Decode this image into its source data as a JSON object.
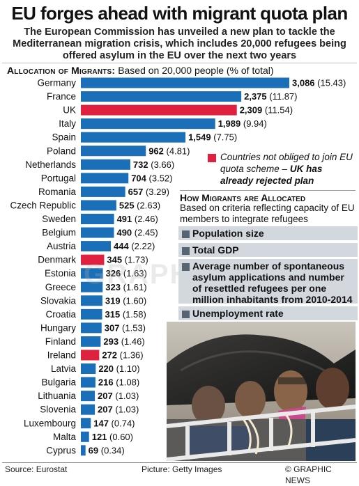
{
  "header": {
    "title": "EU forges ahead with migrant quota plan",
    "subtitle": "The European Commission has unveiled a new plan to tackle the Mediterranean migration crisis, which includes 20,000 refugees being offered asylum in the EU over the next two years"
  },
  "allocation_heading": {
    "bold": "Allocation of Migrants:",
    "rest": "Based on 20,000 people (% of total)"
  },
  "colors": {
    "blue": "#1a6fb8",
    "red": "#e0203f",
    "criteria_bg": "#d3d8df",
    "criteria_square": "#566571"
  },
  "chart_data": {
    "type": "bar",
    "orientation": "horizontal",
    "title": "Allocation of Migrants",
    "subtitle": "Based on 20,000 people (% of total)",
    "categories": [
      "Germany",
      "France",
      "UK",
      "Italy",
      "Spain",
      "Poland",
      "Netherlands",
      "Portugal",
      "Romania",
      "Czech Republic",
      "Sweden",
      "Belgium",
      "Austria",
      "Denmark",
      "Estonia",
      "Greece",
      "Slovakia",
      "Croatia",
      "Hungary",
      "Finland",
      "Ireland",
      "Latvia",
      "Bulgaria",
      "Lithuania",
      "Slovenia",
      "Luxembourg",
      "Malta",
      "Cyprus"
    ],
    "values": [
      3086,
      2375,
      2309,
      1989,
      1549,
      962,
      732,
      704,
      657,
      525,
      491,
      490,
      444,
      345,
      326,
      323,
      319,
      315,
      307,
      293,
      272,
      220,
      216,
      207,
      207,
      147,
      121,
      69
    ],
    "value_labels": [
      "3,086",
      "2,375",
      "2,309",
      "1,989",
      "1,549",
      "962",
      "732",
      "704",
      "657",
      "525",
      "491",
      "490",
      "444",
      "345",
      "326",
      "323",
      "319",
      "315",
      "307",
      "293",
      "272",
      "220",
      "216",
      "207",
      "207",
      "147",
      "121",
      "69"
    ],
    "percent_labels": [
      "(15.43)",
      "(11.87)",
      "(11.54)",
      "(9.94)",
      "(7.75)",
      "(4.81)",
      "(3.66)",
      "(3.52)",
      "(3.29)",
      "(2.63)",
      "(2.46)",
      "(2.45)",
      "(2.22)",
      "(1.73)",
      "(1.63)",
      "(1.61)",
      "(1.60)",
      "(1.58)",
      "(1.53)",
      "(1.46)",
      "(1.36)",
      "(1.10)",
      "(1.08)",
      "(1.03)",
      "(1.03)",
      "(0.74)",
      "(0.60)",
      "(0.34)"
    ],
    "not_obliged": [
      "UK",
      "Denmark",
      "Ireland"
    ],
    "xlim": [
      0,
      3086
    ],
    "grid": false
  },
  "legend_note": {
    "text": "Countries not obliged to join EU quota scheme – ",
    "bold": "UK has already rejected plan"
  },
  "how_allocated": {
    "heading": "How Migrants are Allocated",
    "description": "Based on criteria reflecting capacity of EU members to integrate refugees",
    "criteria": [
      "Population size",
      "Total GDP",
      "Average number of spontaneous asylum applications and number of resettled refugees per one million inhabitants from 2010-2014",
      "Unemployment rate"
    ]
  },
  "watermark": "GRAPHIC NEWS",
  "footer": {
    "source": "Source: Eurostat",
    "picture": "Picture: Getty Images",
    "credit": "© GRAPHIC NEWS"
  }
}
